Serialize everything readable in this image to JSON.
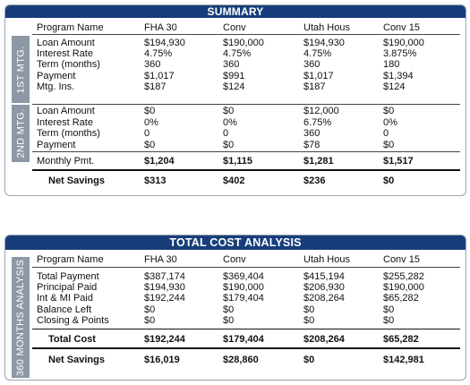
{
  "summary": {
    "title": "SUMMARY",
    "side_labels": [
      "1ST MTG.",
      "2ND MTG."
    ],
    "columns": [
      "Program Name",
      "FHA 30",
      "Conv",
      "Utah Hous",
      "Conv 15"
    ],
    "first_mtg": [
      {
        "label": "Loan Amount",
        "values": [
          "$194,930",
          "$190,000",
          "$194,930",
          "$190,000"
        ]
      },
      {
        "label": "Interest Rate",
        "values": [
          "4.75%",
          "4.75%",
          "4.75%",
          "3.875%"
        ]
      },
      {
        "label": "Term (months)",
        "values": [
          "360",
          "360",
          "360",
          "180"
        ]
      },
      {
        "label": "Payment",
        "values": [
          "$1,017",
          "$991",
          "$1,017",
          "$1,394"
        ]
      },
      {
        "label": "Mtg. Ins.",
        "values": [
          "$187",
          "$124",
          "$187",
          "$124"
        ]
      }
    ],
    "second_mtg": [
      {
        "label": "Loan Amount",
        "values": [
          "$0",
          "$0",
          "$12,000",
          "$0"
        ]
      },
      {
        "label": "Interest Rate",
        "values": [
          "0%",
          "0%",
          "6.75%",
          "0%"
        ]
      },
      {
        "label": "Term (months)",
        "values": [
          "0",
          "0",
          "360",
          "0"
        ]
      },
      {
        "label": "Payment",
        "values": [
          "$0",
          "$0",
          "$78",
          "$0"
        ]
      }
    ],
    "monthly_pmt": {
      "label": "Monthly Pmt.",
      "values": [
        "$1,204",
        "$1,115",
        "$1,281",
        "$1,517"
      ]
    },
    "net_savings": {
      "label": "Net Savings",
      "values": [
        "$313",
        "$402",
        "$236",
        "$0"
      ]
    }
  },
  "total_cost": {
    "title": "TOTAL COST ANALYSIS",
    "side_label": "360 MONTHS ANALYSIS",
    "columns": [
      "Program Name",
      "FHA 30",
      "Conv",
      "Utah Hous",
      "Conv 15"
    ],
    "rows": [
      {
        "label": "Total Payment",
        "values": [
          "$387,174",
          "$369,404",
          "$415,194",
          "$255,282"
        ]
      },
      {
        "label": "Principal Paid",
        "values": [
          "$194,930",
          "$190,000",
          "$206,930",
          "$190,000"
        ]
      },
      {
        "label": "Int & MI Paid",
        "values": [
          "$192,244",
          "$179,404",
          "$208,264",
          "$65,282"
        ]
      },
      {
        "label": "Balance Left",
        "values": [
          "$0",
          "$0",
          "$0",
          "$0"
        ]
      },
      {
        "label": "Closing & Points",
        "values": [
          "$0",
          "$0",
          "$0",
          "$0"
        ]
      }
    ],
    "total_cost": {
      "label": "Total Cost",
      "values": [
        "$192,244",
        "$179,404",
        "$208,264",
        "$65,282"
      ]
    },
    "net_savings": {
      "label": "Net Savings",
      "values": [
        "$16,019",
        "$28,860",
        "$0",
        "$142,981"
      ]
    }
  }
}
